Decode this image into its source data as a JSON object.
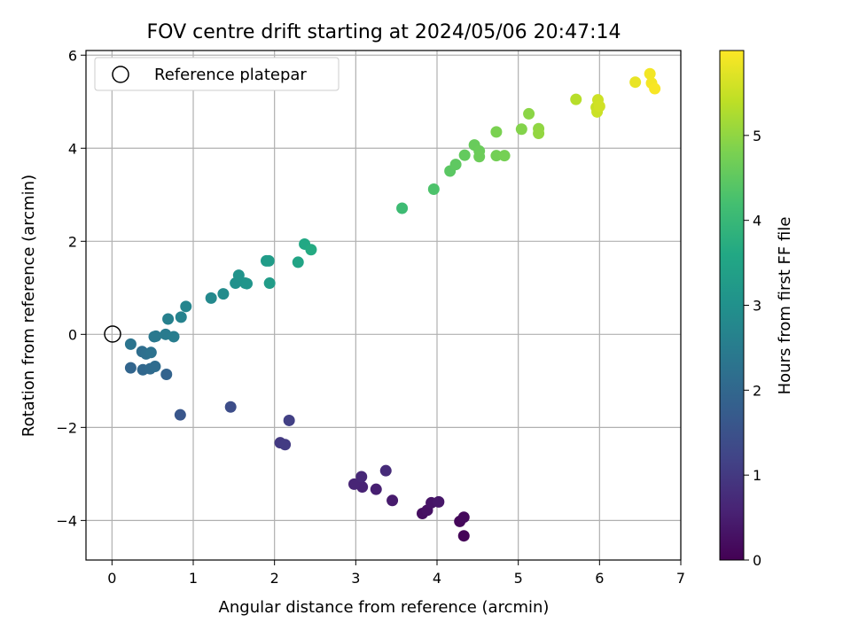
{
  "chart_data": {
    "type": "scatter",
    "title": "FOV centre drift starting at 2024/05/06 20:47:14",
    "xlabel": "Angular distance from reference (arcmin)",
    "ylabel": "Rotation from reference (arcmin)",
    "xlim": [
      -0.32,
      7.0
    ],
    "ylim": [
      -4.85,
      6.1
    ],
    "xticks": [
      0,
      1,
      2,
      3,
      4,
      5,
      6,
      7
    ],
    "yticks": [
      -4,
      -2,
      0,
      2,
      4,
      6
    ],
    "grid": true,
    "legend": {
      "placement": "top-left",
      "entries": [
        "Reference platepar"
      ]
    },
    "reference_point": {
      "x": 0,
      "y": 0,
      "label": "Reference platepar",
      "marker": "open-circle"
    },
    "colorbar": {
      "label": "Hours from first FF file",
      "colormap": "viridis",
      "range": [
        0,
        6.0
      ],
      "ticks": [
        0,
        1,
        2,
        3,
        4,
        5
      ]
    },
    "points": [
      {
        "x": 4.33,
        "y": -4.33,
        "h": 0.05
      },
      {
        "x": 4.28,
        "y": -4.02,
        "h": 0.1
      },
      {
        "x": 4.33,
        "y": -3.93,
        "h": 0.15
      },
      {
        "x": 3.82,
        "y": -3.85,
        "h": 0.22
      },
      {
        "x": 3.88,
        "y": -3.78,
        "h": 0.28
      },
      {
        "x": 3.93,
        "y": -3.62,
        "h": 0.33
      },
      {
        "x": 4.02,
        "y": -3.6,
        "h": 0.38
      },
      {
        "x": 3.45,
        "y": -3.57,
        "h": 0.45
      },
      {
        "x": 3.25,
        "y": -3.33,
        "h": 0.52
      },
      {
        "x": 3.08,
        "y": -3.28,
        "h": 0.58
      },
      {
        "x": 2.98,
        "y": -3.22,
        "h": 0.62
      },
      {
        "x": 3.07,
        "y": -3.06,
        "h": 0.68
      },
      {
        "x": 3.37,
        "y": -2.93,
        "h": 0.74
      },
      {
        "x": 2.07,
        "y": -2.33,
        "h": 1.0
      },
      {
        "x": 2.13,
        "y": -2.37,
        "h": 1.05
      },
      {
        "x": 2.18,
        "y": -1.85,
        "h": 1.12
      },
      {
        "x": 1.46,
        "y": -1.56,
        "h": 1.4
      },
      {
        "x": 0.84,
        "y": -1.73,
        "h": 1.6
      },
      {
        "x": 0.67,
        "y": -0.86,
        "h": 1.9
      },
      {
        "x": 0.23,
        "y": -0.72,
        "h": 1.95
      },
      {
        "x": 0.38,
        "y": -0.76,
        "h": 2.0
      },
      {
        "x": 0.47,
        "y": -0.74,
        "h": 2.05
      },
      {
        "x": 0.53,
        "y": -0.69,
        "h": 2.1
      },
      {
        "x": 0.37,
        "y": -0.37,
        "h": 2.15
      },
      {
        "x": 0.42,
        "y": -0.42,
        "h": 2.2
      },
      {
        "x": 0.48,
        "y": -0.39,
        "h": 2.25
      },
      {
        "x": 0.23,
        "y": -0.21,
        "h": 2.3
      },
      {
        "x": 0.52,
        "y": -0.05,
        "h": 2.38
      },
      {
        "x": 0.54,
        "y": -0.04,
        "h": 2.42
      },
      {
        "x": 0.66,
        "y": 0.0,
        "h": 2.48
      },
      {
        "x": 0.76,
        "y": -0.05,
        "h": 2.52
      },
      {
        "x": 0.69,
        "y": 0.33,
        "h": 2.6
      },
      {
        "x": 0.85,
        "y": 0.37,
        "h": 2.65
      },
      {
        "x": 0.91,
        "y": 0.6,
        "h": 2.72
      },
      {
        "x": 1.22,
        "y": 0.78,
        "h": 2.82
      },
      {
        "x": 1.37,
        "y": 0.87,
        "h": 2.88
      },
      {
        "x": 1.52,
        "y": 1.1,
        "h": 3.0
      },
      {
        "x": 1.56,
        "y": 1.27,
        "h": 3.05
      },
      {
        "x": 1.64,
        "y": 1.1,
        "h": 3.08
      },
      {
        "x": 1.66,
        "y": 1.09,
        "h": 3.1
      },
      {
        "x": 1.9,
        "y": 1.58,
        "h": 3.25
      },
      {
        "x": 1.93,
        "y": 1.58,
        "h": 3.28
      },
      {
        "x": 1.94,
        "y": 1.1,
        "h": 3.3
      },
      {
        "x": 2.29,
        "y": 1.55,
        "h": 3.5
      },
      {
        "x": 2.37,
        "y": 1.94,
        "h": 3.6
      },
      {
        "x": 2.45,
        "y": 1.82,
        "h": 3.65
      },
      {
        "x": 3.57,
        "y": 2.71,
        "h": 4.1
      },
      {
        "x": 3.96,
        "y": 3.12,
        "h": 4.3
      },
      {
        "x": 4.16,
        "y": 3.51,
        "h": 4.45
      },
      {
        "x": 4.23,
        "y": 3.65,
        "h": 4.5
      },
      {
        "x": 4.34,
        "y": 3.85,
        "h": 4.55
      },
      {
        "x": 4.46,
        "y": 4.07,
        "h": 4.6
      },
      {
        "x": 4.52,
        "y": 3.94,
        "h": 4.62
      },
      {
        "x": 4.52,
        "y": 3.82,
        "h": 4.64
      },
      {
        "x": 4.73,
        "y": 3.84,
        "h": 4.72
      },
      {
        "x": 4.83,
        "y": 3.84,
        "h": 4.75
      },
      {
        "x": 4.73,
        "y": 4.35,
        "h": 4.8
      },
      {
        "x": 5.04,
        "y": 4.41,
        "h": 4.88
      },
      {
        "x": 5.13,
        "y": 4.74,
        "h": 4.95
      },
      {
        "x": 5.25,
        "y": 4.42,
        "h": 5.0
      },
      {
        "x": 5.25,
        "y": 4.32,
        "h": 5.02
      },
      {
        "x": 5.71,
        "y": 5.05,
        "h": 5.35
      },
      {
        "x": 5.96,
        "y": 4.88,
        "h": 5.5
      },
      {
        "x": 5.97,
        "y": 4.78,
        "h": 5.52
      },
      {
        "x": 5.98,
        "y": 5.04,
        "h": 5.55
      },
      {
        "x": 6.0,
        "y": 4.9,
        "h": 5.58
      },
      {
        "x": 6.44,
        "y": 5.42,
        "h": 5.8
      },
      {
        "x": 6.62,
        "y": 5.6,
        "h": 5.9
      },
      {
        "x": 6.64,
        "y": 5.4,
        "h": 5.92
      },
      {
        "x": 6.68,
        "y": 5.28,
        "h": 5.95
      }
    ]
  },
  "colors": {
    "grid": "#b0b0b0",
    "axes": "#000000",
    "background": "#ffffff"
  }
}
